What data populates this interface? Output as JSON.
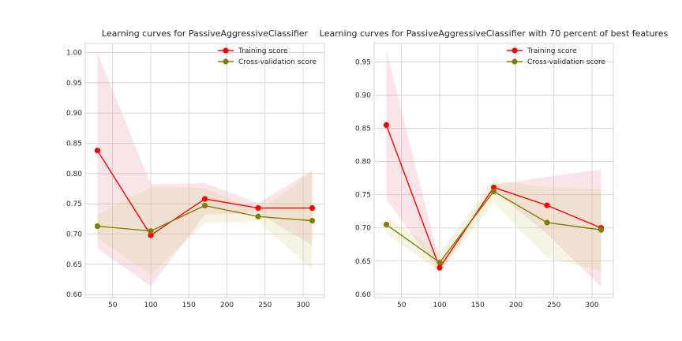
{
  "chart_data": [
    {
      "type": "line",
      "title": "Learning curves for PassiveAggressiveClassifier",
      "xlabel": "",
      "ylabel": "",
      "x": [
        30,
        100,
        171,
        241,
        312
      ],
      "xlim": [
        14,
        328
      ],
      "ylim": [
        0.595,
        1.015
      ],
      "xticks": [
        50,
        100,
        150,
        200,
        250,
        300
      ],
      "xtick_labels": [
        "50",
        "100",
        "150",
        "200",
        "250",
        "300"
      ],
      "yticks": [
        0.6,
        0.65,
        0.7,
        0.75,
        0.8,
        0.85,
        0.9,
        0.95,
        1.0
      ],
      "ytick_labels": [
        "0.60",
        "0.65",
        "0.70",
        "0.75",
        "0.80",
        "0.85",
        "0.90",
        "0.95",
        "1.00"
      ],
      "grid": true,
      "legend": "top-right",
      "series": [
        {
          "name": "Training score",
          "color": "#ff0000",
          "band_color": "#e8a0a8",
          "values": [
            0.838,
            0.698,
            0.758,
            0.743,
            0.743
          ],
          "band_low": [
            0.676,
            0.614,
            0.732,
            0.735,
            0.681
          ],
          "band_high": [
            1.0,
            0.782,
            0.784,
            0.751,
            0.805
          ]
        },
        {
          "name": "Cross-validation score",
          "color": "#808000",
          "band_color": "#dcd49c",
          "values": [
            0.713,
            0.705,
            0.747,
            0.729,
            0.722
          ],
          "band_low": [
            0.693,
            0.633,
            0.718,
            0.721,
            0.641
          ],
          "band_high": [
            0.733,
            0.777,
            0.776,
            0.737,
            0.803
          ]
        }
      ]
    },
    {
      "type": "line",
      "title": "Learning curves for PassiveAggressiveClassifier with 70 percent of best features",
      "xlabel": "",
      "ylabel": "",
      "x": [
        30,
        100,
        171,
        241,
        312
      ],
      "xlim": [
        14,
        328
      ],
      "ylim": [
        0.595,
        0.978
      ],
      "xticks": [
        50,
        100,
        150,
        200,
        250,
        300
      ],
      "xtick_labels": [
        "50",
        "100",
        "150",
        "200",
        "250",
        "300"
      ],
      "yticks": [
        0.6,
        0.65,
        0.7,
        0.75,
        0.8,
        0.85,
        0.9,
        0.95
      ],
      "ytick_labels": [
        "0.60",
        "0.65",
        "0.70",
        "0.75",
        "0.80",
        "0.85",
        "0.90",
        "0.95"
      ],
      "grid": true,
      "legend": "top-right",
      "series": [
        {
          "name": "Training score",
          "color": "#ff0000",
          "band_color": "#e8a0a8",
          "values": [
            0.855,
            0.64,
            0.761,
            0.734,
            0.7
          ],
          "band_low": [
            0.743,
            0.633,
            0.757,
            0.691,
            0.611
          ],
          "band_high": [
            0.968,
            0.647,
            0.765,
            0.777,
            0.788
          ]
        },
        {
          "name": "Cross-validation score",
          "color": "#808000",
          "band_color": "#dcd49c",
          "values": [
            0.705,
            0.648,
            0.755,
            0.708,
            0.697
          ],
          "band_low": [
            0.692,
            0.633,
            0.738,
            0.655,
            0.635
          ],
          "band_high": [
            0.718,
            0.663,
            0.772,
            0.761,
            0.759
          ]
        }
      ]
    }
  ]
}
